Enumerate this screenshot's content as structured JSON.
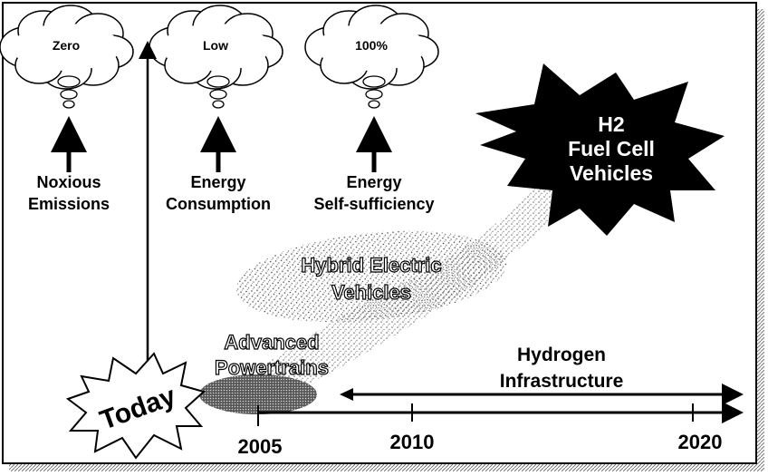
{
  "goals": [
    {
      "target": "Zero",
      "label": [
        "Noxious",
        "Emissions"
      ]
    },
    {
      "target": "Low",
      "label": [
        "Energy",
        "Consumption"
      ]
    },
    {
      "target": "100%",
      "label": [
        "Energy",
        "Self-sufficiency"
      ]
    }
  ],
  "stages": [
    {
      "label": [
        "Advanced",
        "Powertrains"
      ]
    },
    {
      "label": [
        "Hybrid Electric",
        "Vehicles"
      ]
    }
  ],
  "destination": [
    "H2",
    "Fuel Cell",
    "Vehicles"
  ],
  "today": "Today",
  "infrastructure": [
    "Hydrogen",
    "Infrastructure"
  ],
  "timeline": {
    "years": [
      "2005",
      "2010",
      "2020"
    ]
  }
}
